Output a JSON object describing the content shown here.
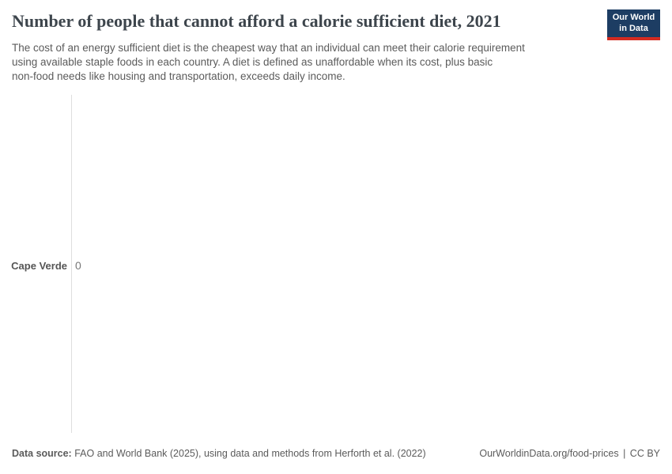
{
  "header": {
    "title": "Number of people that cannot afford a calorie sufficient diet, 2021",
    "subtitle_lines": [
      "The cost of an energy sufficient diet is the cheapest way that an individual can meet their calorie requirement",
      "using available staple foods in each country. A diet is defined as unaffordable when its cost, plus basic",
      "non-food needs like housing and transportation, exceeds daily income."
    ]
  },
  "logo": {
    "line1": "Our World",
    "line2": "in Data"
  },
  "chart": {
    "rows": [
      {
        "label": "Cape Verde",
        "value": "0"
      }
    ]
  },
  "chart_data": {
    "type": "bar",
    "orientation": "horizontal",
    "title": "Number of people that cannot afford a calorie sufficient diet, 2021",
    "year": "2021",
    "categories": [
      "Cape Verde"
    ],
    "values": [
      0
    ],
    "value_labels": [
      "0"
    ],
    "xlim": [
      0,
      null
    ],
    "grid": false,
    "legend": "none"
  },
  "footer": {
    "datasource_label": "Data source:",
    "datasource_text": "FAO and World Bank (2025), using data and methods from Herforth et al. (2022)",
    "url": "OurWorldinData.org/food-prices",
    "separator": "|",
    "license": "CC BY"
  },
  "colors": {
    "logo_navy": "#1d3d63",
    "logo_red": "#d42b21",
    "title": "#3d454c",
    "subtitle": "#5b5b5b",
    "axis_line": "#dedede",
    "entity_label": "#555555",
    "value_label": "#777777"
  }
}
